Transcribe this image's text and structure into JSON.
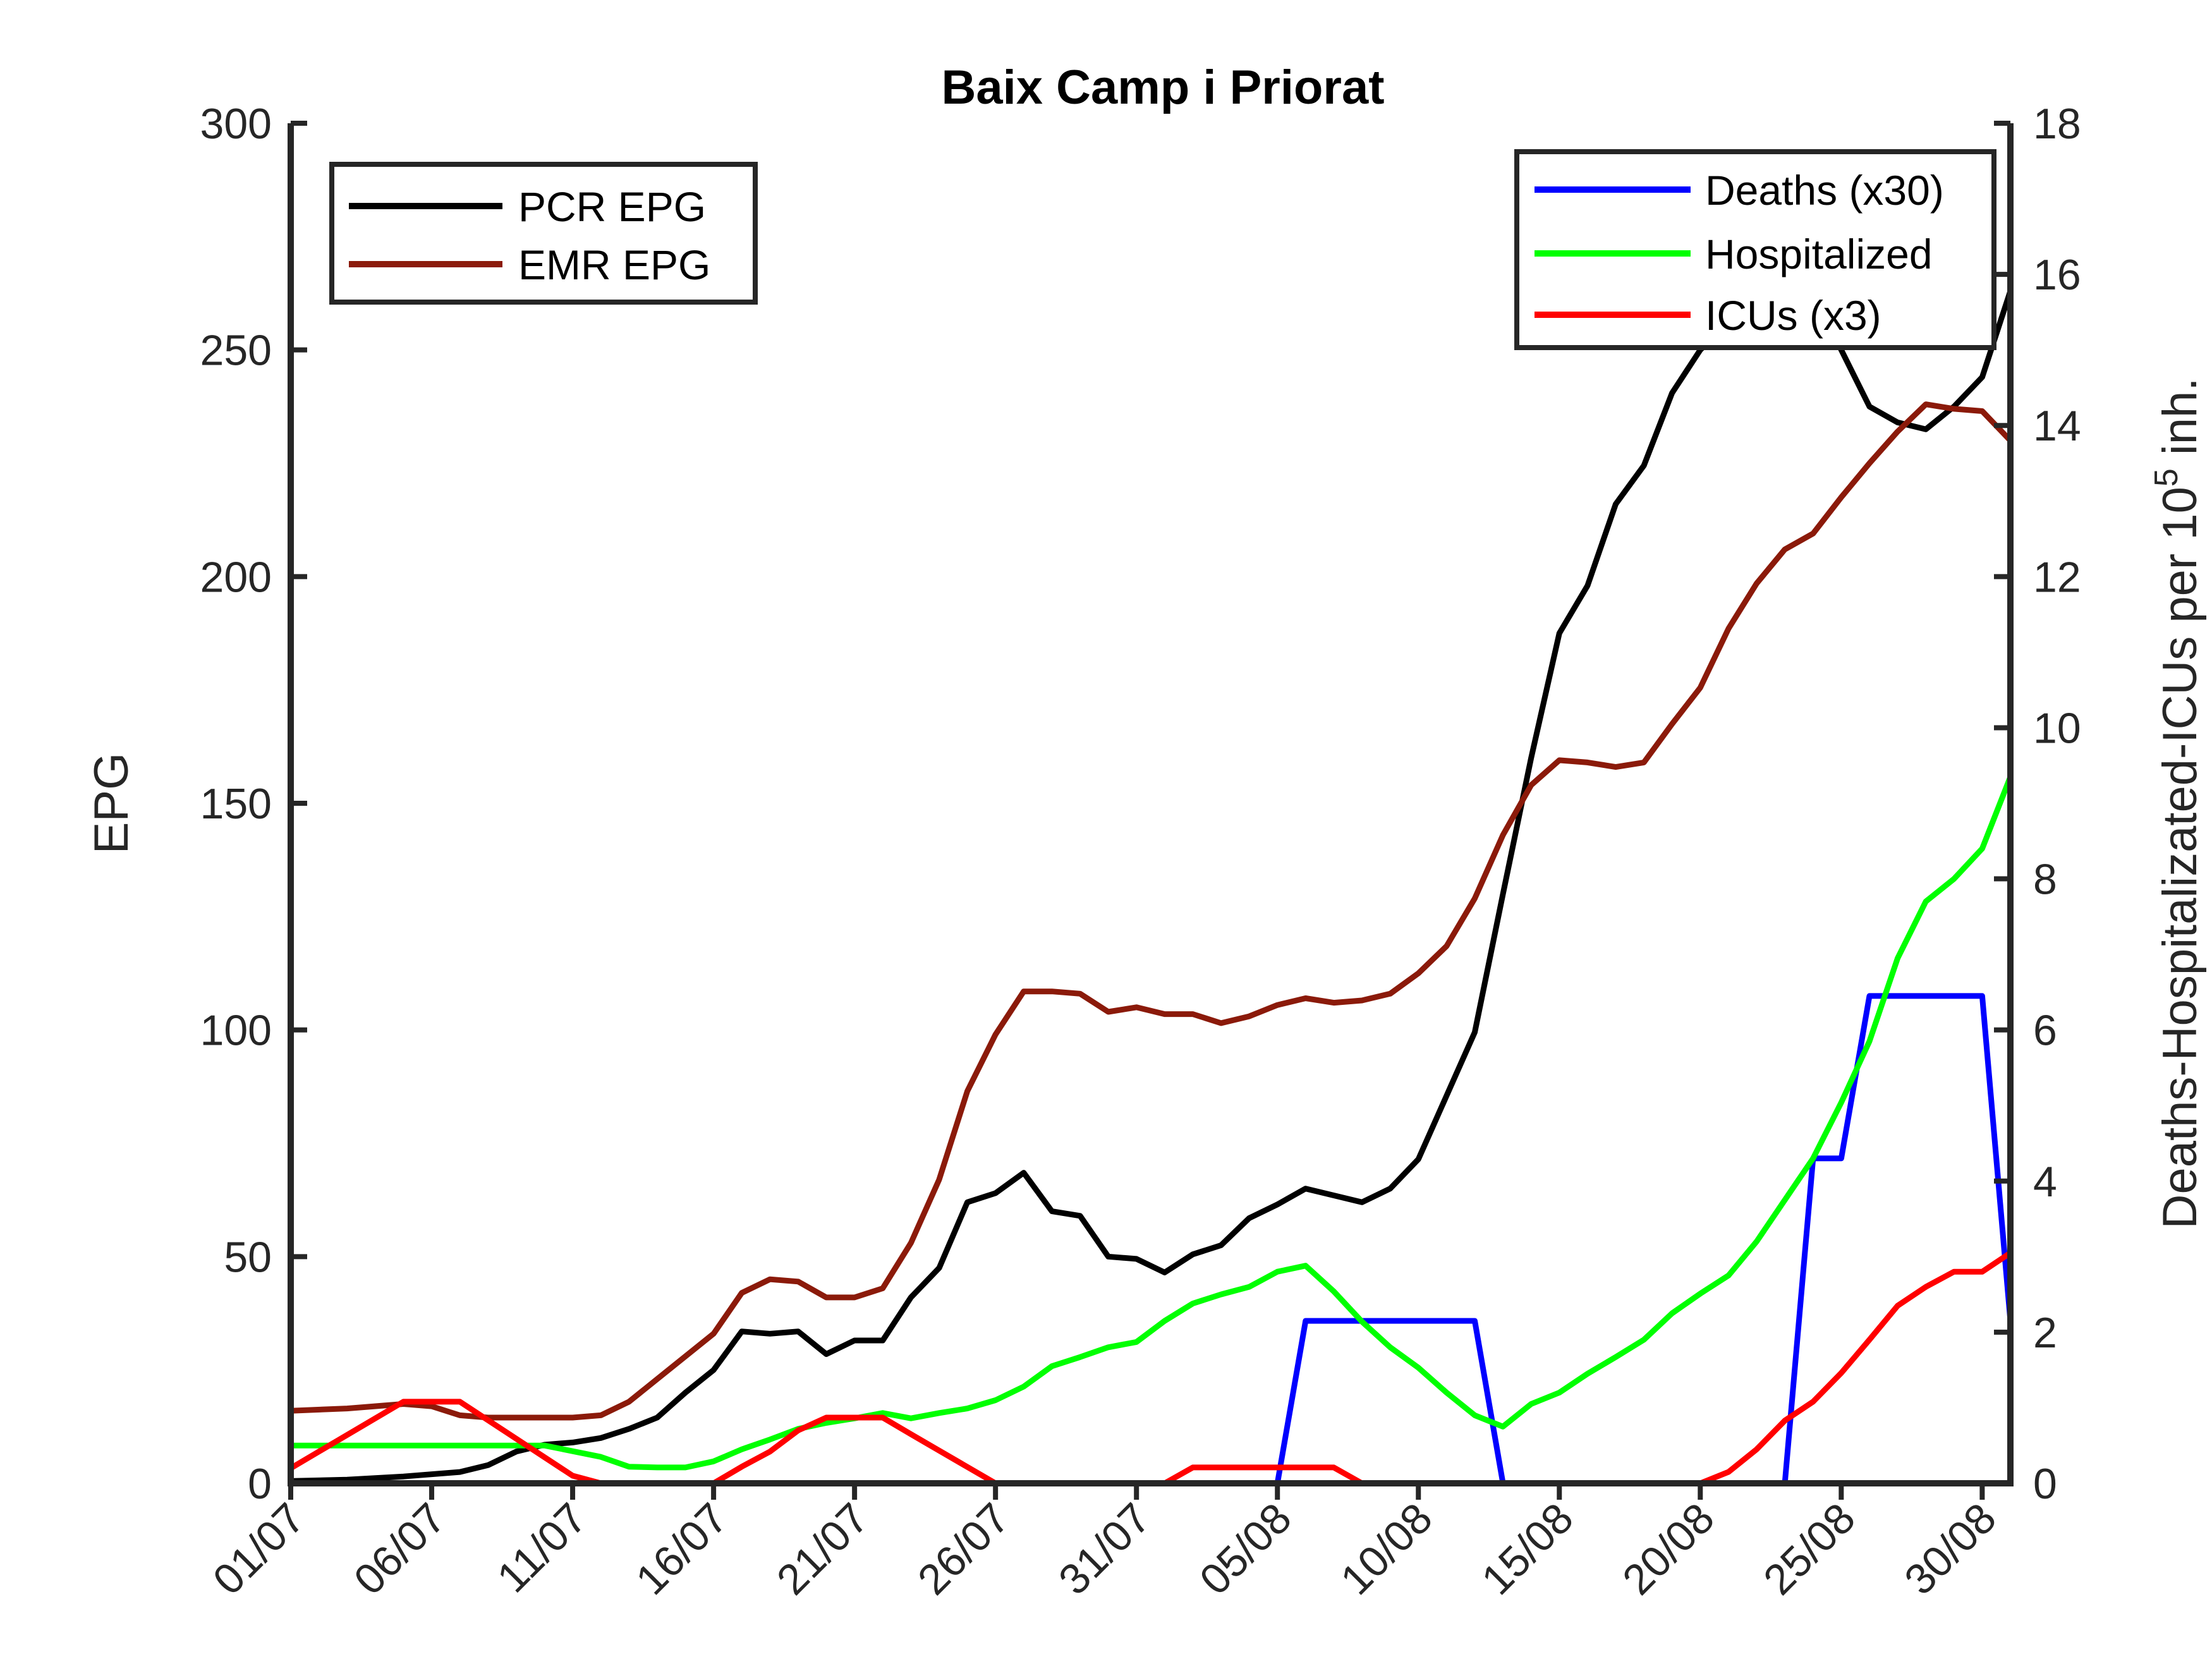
{
  "chart_data": {
    "type": "line",
    "title": "Baix Camp i Priorat",
    "ylabel": "EPG",
    "y2label_prefix": "Deaths-Hospitalizated-ICUs per 10",
    "y2label_exp": "5",
    "y2label_suffix": " inh.",
    "x_tick_labels": [
      "01/07",
      "06/07",
      "11/07",
      "16/07",
      "21/07",
      "26/07",
      "31/07",
      "05/08",
      "10/08",
      "15/08",
      "20/08",
      "25/08",
      "30/08"
    ],
    "x_tick_index": [
      0,
      5,
      10,
      15,
      20,
      25,
      30,
      35,
      40,
      45,
      50,
      55,
      60
    ],
    "x_range": [
      0,
      61
    ],
    "y_ticks": [
      "0",
      "50",
      "100",
      "150",
      "200",
      "250",
      "300"
    ],
    "ylim": [
      0,
      300
    ],
    "y2_ticks": [
      "0",
      "2",
      "4",
      "6",
      "8",
      "10",
      "12",
      "14",
      "16",
      "18"
    ],
    "y2lim": [
      0,
      18
    ],
    "legend_left": [
      "PCR EPG",
      "EMR EPG"
    ],
    "legend_right": [
      "Deaths (x30)",
      "Hospitalized",
      "ICUs (x3)"
    ],
    "series": [
      {
        "name": "PCR EPG",
        "axis": "left",
        "color": "#000000",
        "points": [
          [
            0,
            0.5
          ],
          [
            2,
            0.8
          ],
          [
            4,
            1.5
          ],
          [
            6,
            2.5
          ],
          [
            7,
            4
          ],
          [
            8,
            7
          ],
          [
            9,
            8.5
          ],
          [
            10,
            9
          ],
          [
            11,
            10
          ],
          [
            12,
            12
          ],
          [
            13,
            14.5
          ],
          [
            14,
            20
          ],
          [
            15,
            25
          ],
          [
            16,
            33.5
          ],
          [
            17,
            33
          ],
          [
            18,
            33.5
          ],
          [
            19,
            28.5
          ],
          [
            20,
            31.5
          ],
          [
            21,
            31.5
          ],
          [
            22,
            41
          ],
          [
            23,
            47.5
          ],
          [
            24,
            62
          ],
          [
            25,
            64
          ],
          [
            26,
            68.5
          ],
          [
            27,
            60
          ],
          [
            28,
            59
          ],
          [
            29,
            50
          ],
          [
            30,
            49.5
          ],
          [
            31,
            46.5
          ],
          [
            32,
            50.5
          ],
          [
            33,
            52.5
          ],
          [
            34,
            58.5
          ],
          [
            35,
            61.5
          ],
          [
            36,
            65
          ],
          [
            37,
            63.5
          ],
          [
            38,
            62
          ],
          [
            39,
            65
          ],
          [
            40,
            71.5
          ],
          [
            41,
            85.5
          ],
          [
            42,
            99.5
          ],
          [
            43,
            130
          ],
          [
            44,
            160
          ],
          [
            45,
            187.5
          ],
          [
            46,
            198
          ],
          [
            47,
            216
          ],
          [
            48,
            224.5
          ],
          [
            49,
            240.5
          ],
          [
            50,
            250
          ],
          [
            51,
            256
          ],
          [
            52,
            264
          ],
          [
            53,
            265
          ],
          [
            54,
            262
          ],
          [
            55,
            250
          ],
          [
            56,
            237.5
          ],
          [
            57,
            234
          ],
          [
            58,
            232.5
          ],
          [
            59,
            237.5
          ],
          [
            60,
            244
          ],
          [
            61,
            263
          ]
        ]
      },
      {
        "name": "EMR EPG",
        "axis": "left",
        "color": "#8b1a0a",
        "points": [
          [
            0,
            16
          ],
          [
            2,
            16.5
          ],
          [
            4,
            17.5
          ],
          [
            5,
            17
          ],
          [
            6,
            15
          ],
          [
            7,
            14.5
          ],
          [
            8,
            14.5
          ],
          [
            9,
            14.5
          ],
          [
            10,
            14.5
          ],
          [
            11,
            15
          ],
          [
            12,
            18
          ],
          [
            13,
            23
          ],
          [
            14,
            28
          ],
          [
            15,
            33
          ],
          [
            16,
            42
          ],
          [
            17,
            45
          ],
          [
            18,
            44.5
          ],
          [
            19,
            41
          ],
          [
            20,
            41
          ],
          [
            21,
            43
          ],
          [
            22,
            53
          ],
          [
            23,
            67
          ],
          [
            24,
            86.5
          ],
          [
            25,
            99
          ],
          [
            26,
            108.5
          ],
          [
            27,
            108.5
          ],
          [
            28,
            108
          ],
          [
            29,
            104
          ],
          [
            30,
            105
          ],
          [
            31,
            103.5
          ],
          [
            32,
            103.5
          ],
          [
            33,
            101.5
          ],
          [
            34,
            103
          ],
          [
            35,
            105.5
          ],
          [
            36,
            107
          ],
          [
            37,
            106
          ],
          [
            38,
            106.5
          ],
          [
            39,
            108
          ],
          [
            40,
            112.5
          ],
          [
            41,
            118.5
          ],
          [
            42,
            129
          ],
          [
            43,
            143
          ],
          [
            44,
            154
          ],
          [
            45,
            159.5
          ],
          [
            46,
            159
          ],
          [
            47,
            158
          ],
          [
            48,
            159
          ],
          [
            49,
            167.5
          ],
          [
            50,
            175.5
          ],
          [
            51,
            188.5
          ],
          [
            52,
            198.5
          ],
          [
            53,
            206
          ],
          [
            54,
            209.5
          ],
          [
            55,
            217.5
          ],
          [
            56,
            225
          ],
          [
            57,
            232
          ],
          [
            58,
            238
          ],
          [
            59,
            237
          ],
          [
            60,
            236.5
          ],
          [
            61,
            230
          ]
        ]
      },
      {
        "name": "Deaths (x30)",
        "axis": "right",
        "color": "#0000ff",
        "points": [
          [
            0,
            0
          ],
          [
            35,
            0
          ],
          [
            36,
            2.15
          ],
          [
            42,
            2.15
          ],
          [
            43,
            0
          ],
          [
            53,
            0
          ],
          [
            54,
            4.3
          ],
          [
            55,
            4.3
          ],
          [
            56,
            6.45
          ],
          [
            60,
            6.45
          ],
          [
            61,
            2.15
          ]
        ]
      },
      {
        "name": "Hospitalized",
        "axis": "right",
        "color": "#00ff00",
        "points": [
          [
            0,
            0.5
          ],
          [
            9,
            0.5
          ],
          [
            11,
            0.35
          ],
          [
            12,
            0.22
          ],
          [
            13,
            0.21
          ],
          [
            14,
            0.21
          ],
          [
            15,
            0.29
          ],
          [
            16,
            0.45
          ],
          [
            17,
            0.58
          ],
          [
            18,
            0.72
          ],
          [
            19,
            0.8
          ],
          [
            20,
            0.86
          ],
          [
            21,
            0.93
          ],
          [
            22,
            0.86
          ],
          [
            23,
            0.93
          ],
          [
            24,
            0.99
          ],
          [
            25,
            1.1
          ],
          [
            26,
            1.28
          ],
          [
            27,
            1.55
          ],
          [
            28,
            1.67
          ],
          [
            29,
            1.8
          ],
          [
            30,
            1.87
          ],
          [
            31,
            2.15
          ],
          [
            32,
            2.38
          ],
          [
            33,
            2.5
          ],
          [
            34,
            2.6
          ],
          [
            35,
            2.8
          ],
          [
            36,
            2.88
          ],
          [
            37,
            2.54
          ],
          [
            38,
            2.14
          ],
          [
            39,
            1.8
          ],
          [
            40,
            1.53
          ],
          [
            41,
            1.2
          ],
          [
            42,
            0.9
          ],
          [
            43,
            0.75
          ],
          [
            44,
            1.05
          ],
          [
            45,
            1.2
          ],
          [
            46,
            1.45
          ],
          [
            47,
            1.67
          ],
          [
            48,
            1.9
          ],
          [
            49,
            2.25
          ],
          [
            50,
            2.51
          ],
          [
            51,
            2.75
          ],
          [
            52,
            3.2
          ],
          [
            53,
            3.75
          ],
          [
            54,
            4.3
          ],
          [
            55,
            5.04
          ],
          [
            56,
            5.85
          ],
          [
            57,
            6.95
          ],
          [
            58,
            7.7
          ],
          [
            59,
            8.0
          ],
          [
            60,
            8.4
          ],
          [
            61,
            9.35
          ]
        ]
      },
      {
        "name": "ICUs (x3)",
        "axis": "right",
        "color": "#ff0000",
        "points": [
          [
            0,
            0.2
          ],
          [
            4,
            1.08
          ],
          [
            6,
            1.08
          ],
          [
            10,
            0.1
          ],
          [
            11,
            0
          ],
          [
            15,
            0
          ],
          [
            16,
            0.22
          ],
          [
            17,
            0.42
          ],
          [
            18,
            0.7
          ],
          [
            19,
            0.87
          ],
          [
            21,
            0.87
          ],
          [
            22,
            0.65
          ],
          [
            25,
            0
          ],
          [
            31,
            0
          ],
          [
            32,
            0.21
          ],
          [
            37,
            0.21
          ],
          [
            38,
            0
          ],
          [
            50,
            0
          ],
          [
            51,
            0.15
          ],
          [
            52,
            0.45
          ],
          [
            53,
            0.83
          ],
          [
            54,
            1.08
          ],
          [
            55,
            1.46
          ],
          [
            56,
            1.9
          ],
          [
            57,
            2.35
          ],
          [
            58,
            2.6
          ],
          [
            59,
            2.8
          ],
          [
            60,
            2.8
          ],
          [
            61,
            3.05
          ]
        ]
      }
    ]
  }
}
